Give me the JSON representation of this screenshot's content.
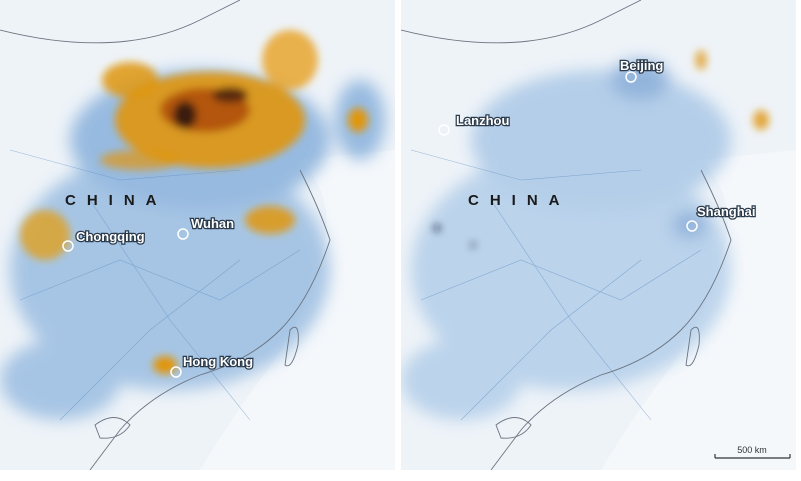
{
  "panels": [
    {
      "country_label": "CHINA",
      "cities": [
        {
          "name": "Chongqing"
        },
        {
          "name": "Wuhan"
        },
        {
          "name": "Hong Kong"
        }
      ]
    },
    {
      "country_label": "CHINA",
      "cities": [
        {
          "name": "Beijing"
        },
        {
          "name": "Lanzhou"
        },
        {
          "name": "Shanghai"
        }
      ],
      "scale_bar": "500 km"
    }
  ]
}
